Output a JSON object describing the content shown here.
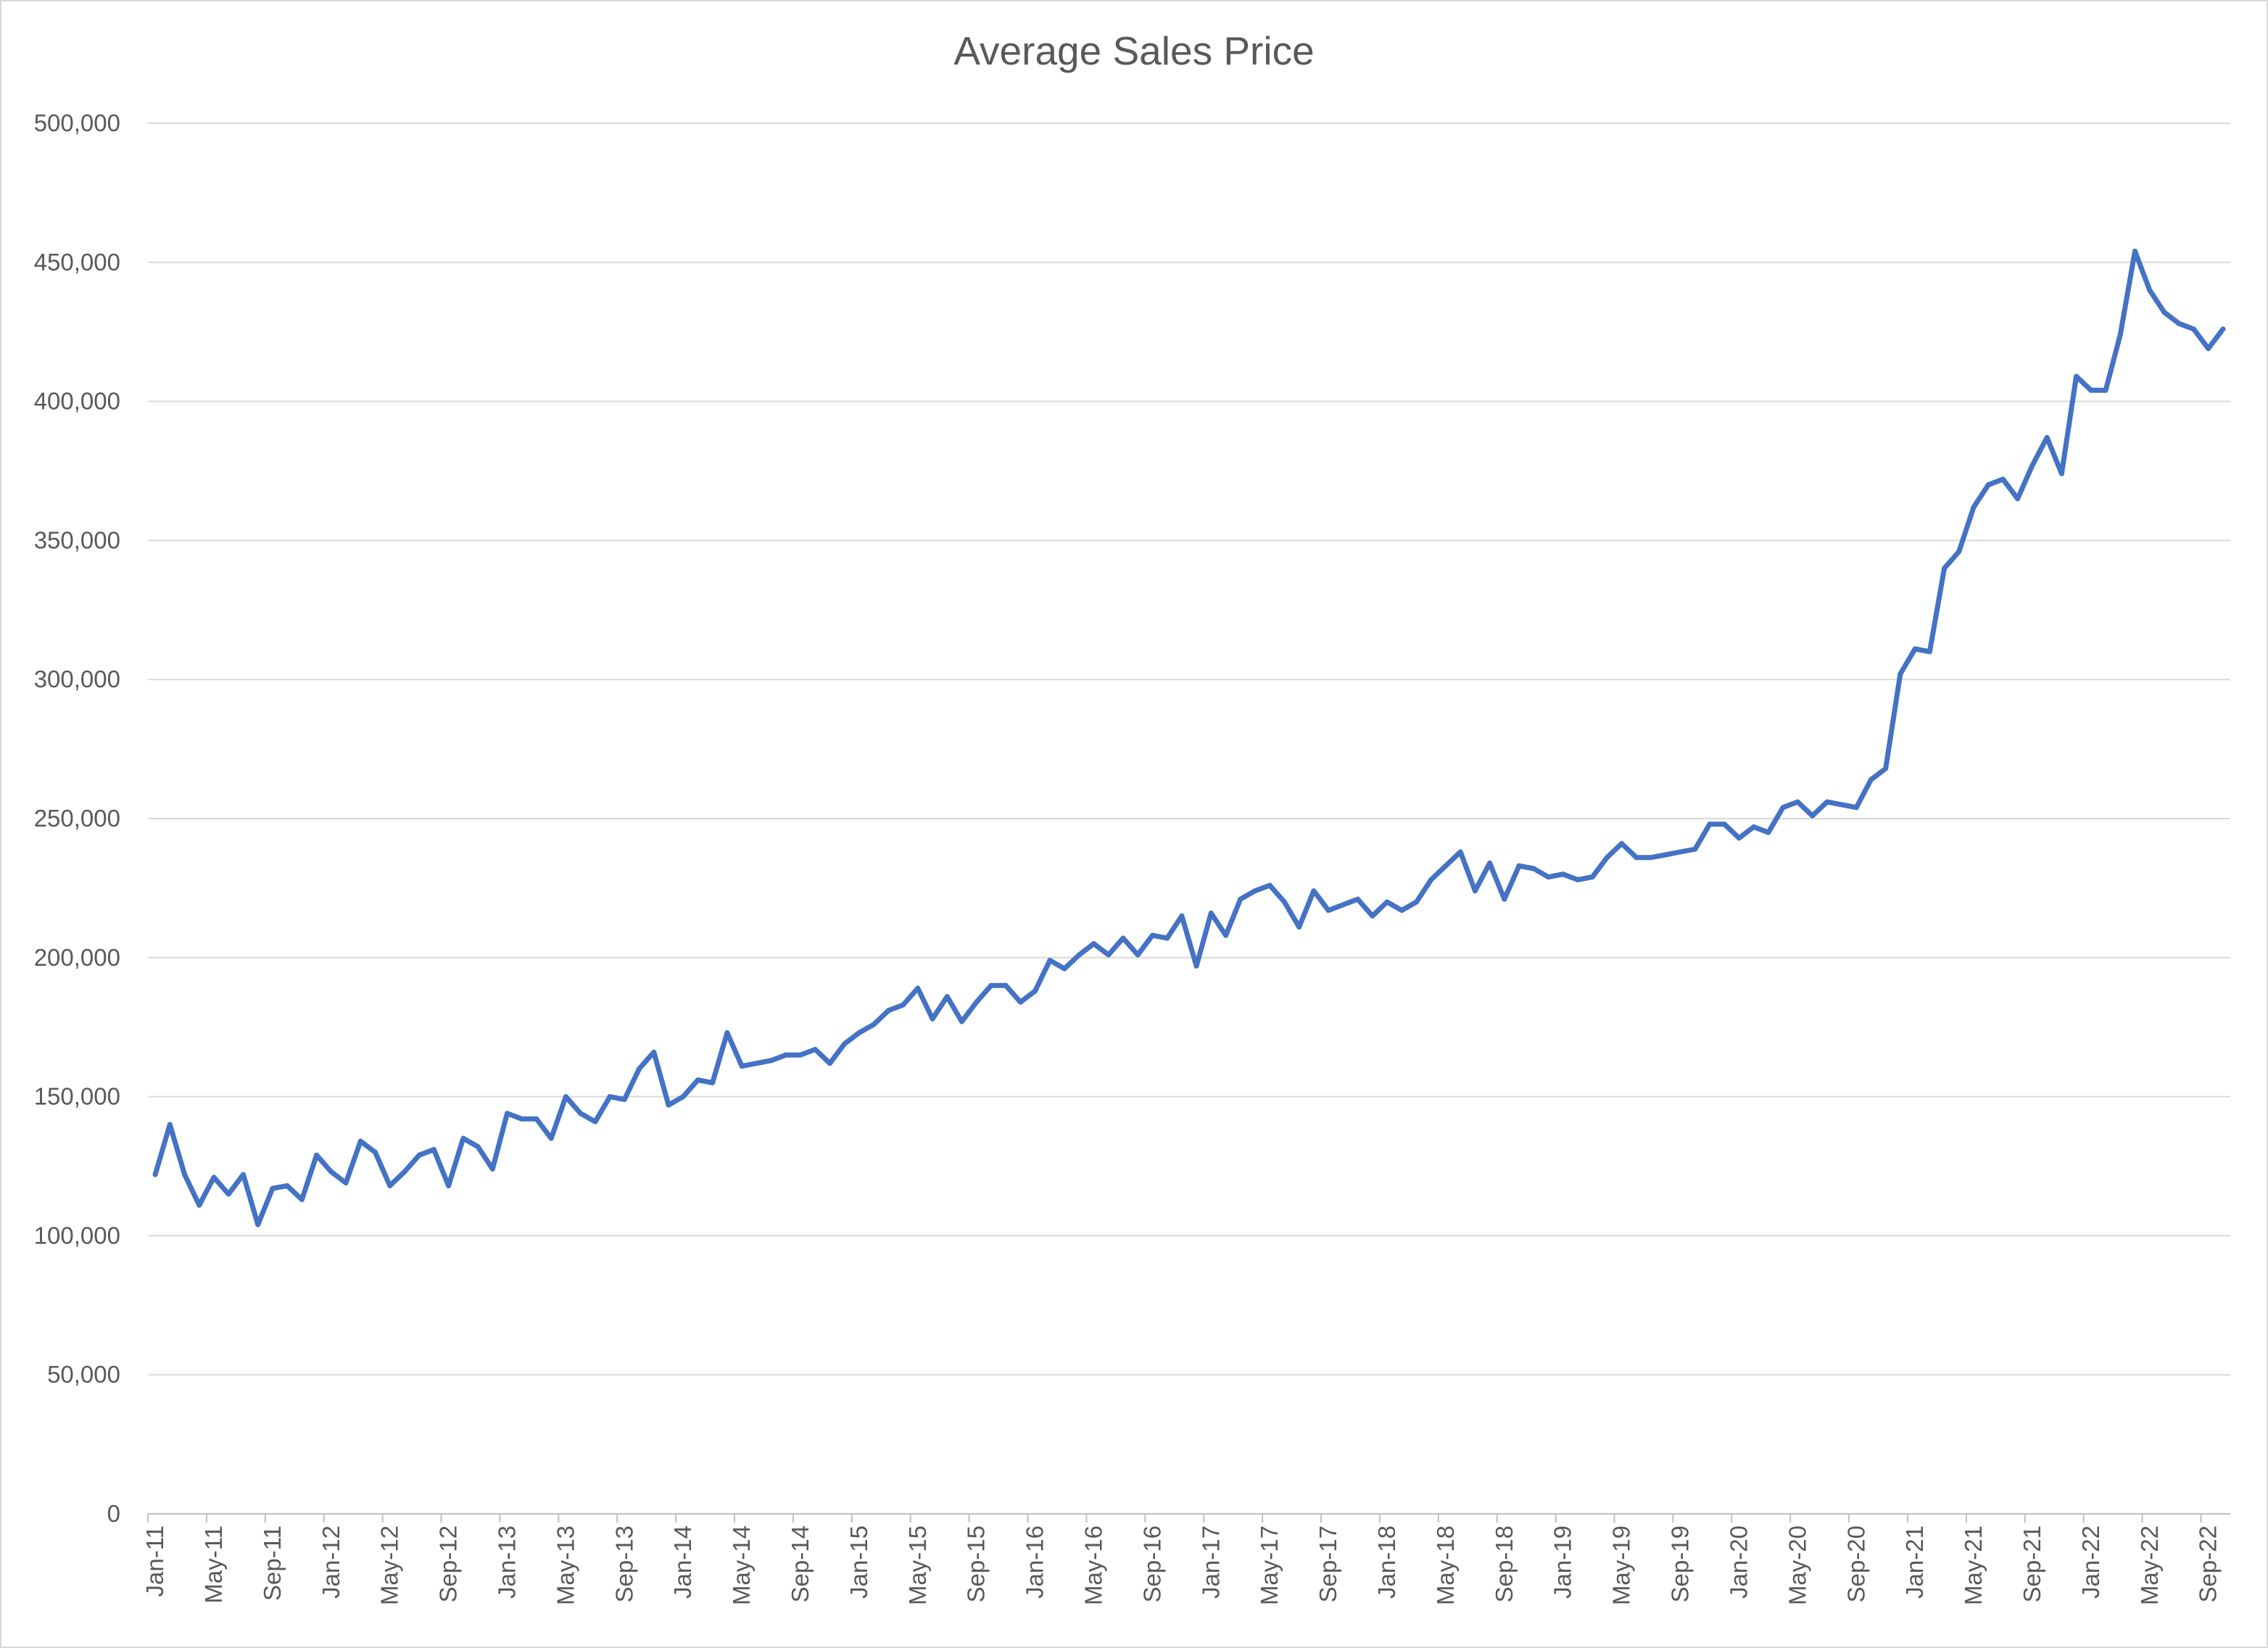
{
  "chart_data": {
    "type": "line",
    "title": "Average Sales Price",
    "xlabel": "",
    "ylabel": "",
    "ylim": [
      0,
      500000
    ],
    "ytick_labels": [
      "0",
      "50,000",
      "100,000",
      "150,000",
      "200,000",
      "250,000",
      "300,000",
      "350,000",
      "400,000",
      "450,000",
      "500,000"
    ],
    "xtick_labels": [
      "Jan-11",
      "May-11",
      "Sep-11",
      "Jan-12",
      "May-12",
      "Sep-12",
      "Jan-13",
      "May-13",
      "Sep-13",
      "Jan-14",
      "May-14",
      "Sep-14",
      "Jan-15",
      "May-15",
      "Sep-15",
      "Jan-16",
      "May-16",
      "Sep-16",
      "Jan-17",
      "May-17",
      "Sep-17",
      "Jan-18",
      "May-18",
      "Sep-18",
      "Jan-19",
      "May-19",
      "Sep-19",
      "Jan-20",
      "May-20",
      "Sep-20",
      "Jan-21",
      "May-21",
      "Sep-21",
      "Jan-22",
      "May-22",
      "Sep-22"
    ],
    "grid": true,
    "legend": "none",
    "x_start": "Jan-11",
    "x_end": "Nov-22",
    "series": [
      {
        "color": "#4472c4",
        "values": [
          122000,
          140000,
          122000,
          111000,
          121000,
          115000,
          122000,
          104000,
          117000,
          118000,
          113000,
          129000,
          123000,
          119000,
          134000,
          130000,
          118000,
          123000,
          129000,
          131000,
          118000,
          135000,
          132000,
          124000,
          144000,
          142000,
          142000,
          135000,
          150000,
          144000,
          141000,
          150000,
          149000,
          160000,
          166000,
          147000,
          150000,
          156000,
          155000,
          173000,
          161000,
          162000,
          163000,
          165000,
          165000,
          167000,
          162000,
          169000,
          173000,
          176000,
          181000,
          183000,
          189000,
          178000,
          186000,
          177000,
          184000,
          190000,
          190000,
          184000,
          188000,
          199000,
          196000,
          201000,
          205000,
          201000,
          207000,
          201000,
          208000,
          207000,
          215000,
          197000,
          216000,
          208000,
          221000,
          224000,
          226000,
          220000,
          211000,
          224000,
          217000,
          219000,
          221000,
          215000,
          220000,
          217000,
          220000,
          228000,
          233000,
          238000,
          224000,
          234000,
          221000,
          233000,
          232000,
          229000,
          230000,
          228000,
          229000,
          236000,
          241000,
          236000,
          236000,
          237000,
          238000,
          239000,
          248000,
          248000,
          243000,
          247000,
          245000,
          254000,
          256000,
          251000,
          256000,
          255000,
          254000,
          264000,
          268000,
          302000,
          311000,
          310000,
          340000,
          346000,
          362000,
          370000,
          372000,
          365000,
          377000,
          387000,
          374000,
          409000,
          404000,
          404000,
          424000,
          454000,
          440000,
          432000,
          428000,
          426000,
          419000,
          426000
        ]
      }
    ]
  }
}
